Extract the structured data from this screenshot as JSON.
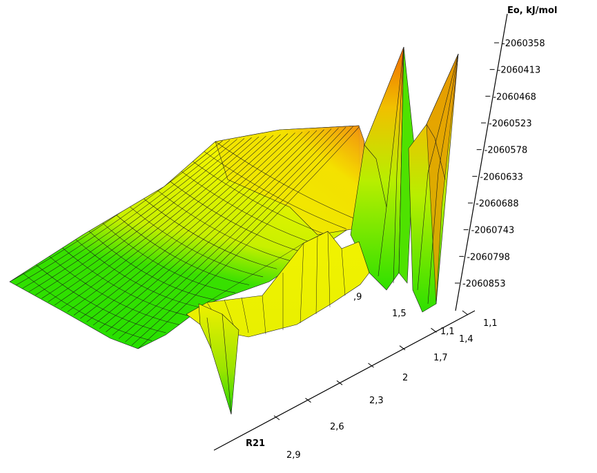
{
  "chart_data": {
    "type": "surface3d",
    "z_axis": {
      "title": "Eo, kJ/mol",
      "ticks": [
        "-2060358",
        "-2060413",
        "-2060468",
        "-2060523",
        "-2060578",
        "-2060633",
        "-2060688",
        "-2060743",
        "-2060798",
        "-2060853"
      ]
    },
    "r21_axis": {
      "title": "R21",
      "ticks": [
        "1,1",
        "1,4",
        "1,7",
        "2",
        "2,3",
        "2,6",
        "2,9"
      ]
    },
    "depth_axis": {
      "ticks": [
        "1,1",
        "1,5",
        ",9"
      ]
    },
    "colors": {
      "low": "#22e000",
      "mid": "#f0f000",
      "high": "#f07000"
    }
  }
}
